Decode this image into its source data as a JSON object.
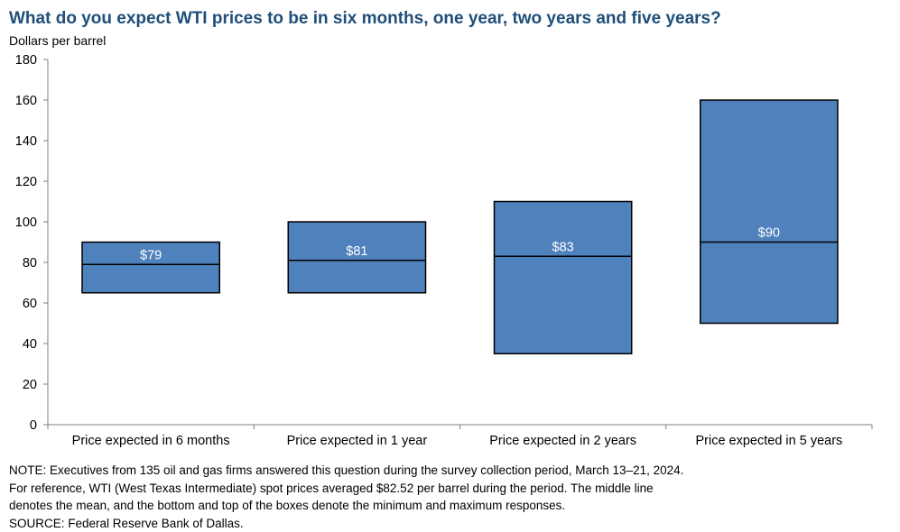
{
  "title": "What do you expect WTI prices to be in six months, one year, two years and five years?",
  "ylabel": "Dollars  per barrel",
  "colors": {
    "box": "#4f81bd",
    "edge": "#000000",
    "title": "#1f4e79"
  },
  "chart_data": {
    "type": "box",
    "categories": [
      "Price expected in 6 months",
      "Price expected in 1 year",
      "Price expected in 2 years",
      "Price expected in 5 years"
    ],
    "series": [
      {
        "min": 65,
        "mean": 79,
        "max": 90,
        "label": "$79"
      },
      {
        "min": 65,
        "mean": 81,
        "max": 100,
        "label": "$81"
      },
      {
        "min": 35,
        "mean": 83,
        "max": 110,
        "label": "$83"
      },
      {
        "min": 50,
        "mean": 90,
        "max": 160,
        "label": "$90"
      }
    ],
    "ylim": [
      0,
      180
    ],
    "yticks": [
      0,
      20,
      40,
      60,
      80,
      100,
      120,
      140,
      160,
      180
    ],
    "grid": false,
    "legend": "none"
  },
  "note": [
    "NOTE:  Executives  from  135  oil  and  gas  firms  answered  this  question  during  the  survey  collection  period,  March  13–21,  2024.",
    "For  reference,  WTI  (West  Texas  Intermediate)  spot  prices  averaged  $82.52  per  barrel  during  the  period.  The  middle  line",
    "denotes  the  mean,  and  the  bottom  and  top  of  the  boxes  denote  the  minimum  and  maximum  responses.",
    "SOURCE:  Federal  Reserve  Bank  of  Dallas."
  ]
}
